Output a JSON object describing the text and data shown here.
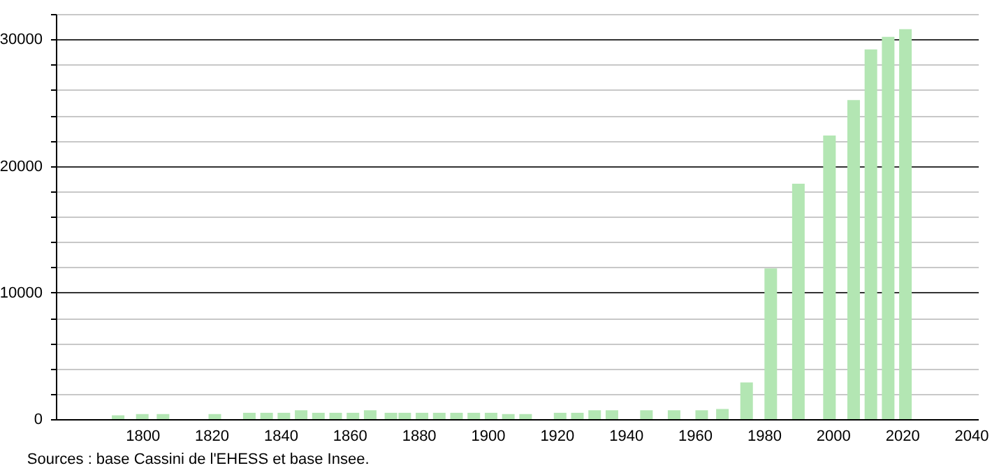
{
  "chart_data": {
    "type": "bar",
    "annotations": [
      "Sources : base Cassini de l'EHESS et base Insee."
    ],
    "x": [
      1793,
      1800,
      1806,
      1821,
      1831,
      1836,
      1841,
      1846,
      1851,
      1856,
      1861,
      1866,
      1872,
      1876,
      1881,
      1886,
      1891,
      1896,
      1901,
      1906,
      1911,
      1921,
      1926,
      1931,
      1936,
      1946,
      1954,
      1962,
      1968,
      1975,
      1982,
      1990,
      1999,
      2006,
      2011,
      2016,
      2021
    ],
    "values": [
      300,
      400,
      400,
      400,
      500,
      500,
      500,
      700,
      500,
      500,
      500,
      700,
      500,
      500,
      500,
      500,
      500,
      500,
      500,
      400,
      400,
      500,
      500,
      700,
      700,
      700,
      700,
      700,
      800,
      2900,
      11900,
      18600,
      22400,
      25200,
      29200,
      30200,
      30800
    ],
    "color": "#b3e6b3",
    "xlim": [
      1777,
      2040
    ],
    "xticks": [
      1800,
      1820,
      1840,
      1860,
      1880,
      1900,
      1920,
      1940,
      1960,
      1980,
      2000,
      2020,
      2040
    ],
    "ylim": [
      0,
      32000
    ],
    "yticks": [
      0,
      {
        "value": 2000,
        "label": null
      },
      {
        "value": 4000,
        "label": null
      },
      {
        "value": 6000,
        "label": null
      },
      {
        "value": 8000,
        "label": null
      },
      10000,
      {
        "value": 12000,
        "label": null
      },
      {
        "value": 14000,
        "label": null
      },
      {
        "value": 16000,
        "label": null
      },
      {
        "value": 18000,
        "label": null
      },
      20000,
      {
        "value": 22000,
        "label": null
      },
      {
        "value": 24000,
        "label": null
      },
      {
        "value": 26000,
        "label": null
      },
      {
        "value": 28000,
        "label": null
      },
      30000,
      {
        "value": 32000,
        "label": null
      }
    ],
    "grid": "y"
  }
}
